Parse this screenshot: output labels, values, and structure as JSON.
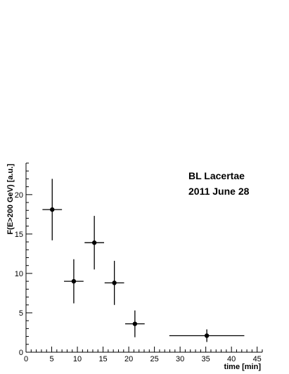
{
  "chart_data": {
    "type": "scatter",
    "xlabel": "time [min]",
    "ylabel": "F(E>200 GeV) [a.u.]",
    "xlim": [
      0,
      46
    ],
    "ylim": [
      0,
      24
    ],
    "x_ticks": [
      "0",
      "5",
      "10",
      "15",
      "20",
      "25",
      "30",
      "35",
      "40",
      "45"
    ],
    "y_ticks": [
      "0",
      "5",
      "10",
      "15",
      "20"
    ],
    "annotations": [
      "BL Lacertae",
      "2011 June 28"
    ],
    "points": [
      {
        "x": 5.1,
        "y": 18.1,
        "xerr": 1.9,
        "yerr_low": 3.9,
        "yerr_high": 3.9
      },
      {
        "x": 9.3,
        "y": 9.0,
        "xerr": 1.9,
        "yerr_low": 2.8,
        "yerr_high": 2.8
      },
      {
        "x": 13.3,
        "y": 13.9,
        "xerr": 1.9,
        "yerr_low": 3.4,
        "yerr_high": 3.4
      },
      {
        "x": 17.2,
        "y": 8.8,
        "xerr": 1.9,
        "yerr_low": 2.8,
        "yerr_high": 2.8
      },
      {
        "x": 21.2,
        "y": 3.6,
        "xerr": 1.9,
        "yerr_low": 1.7,
        "yerr_high": 1.7
      },
      {
        "x": 35.2,
        "y": 2.1,
        "xerr": 7.3,
        "yerr_low": 0.8,
        "yerr_high": 0.8
      }
    ],
    "grid": false
  }
}
